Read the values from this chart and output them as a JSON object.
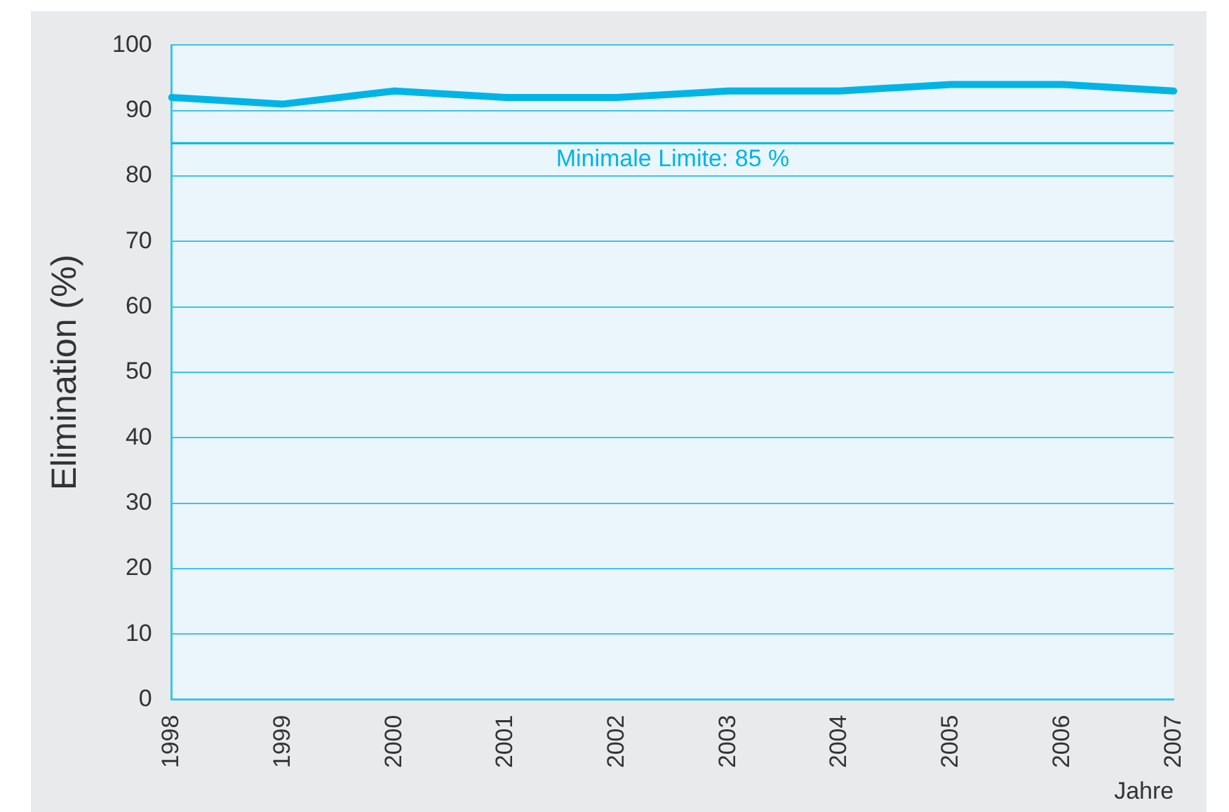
{
  "chart_data": {
    "type": "line",
    "ylabel": "Elimination (%)",
    "xlabel": "Jahre",
    "categories": [
      "1998",
      "1999",
      "2000",
      "2001",
      "2002",
      "2003",
      "2004",
      "2005",
      "2006",
      "2007"
    ],
    "series": [
      {
        "color": "#00b4e6",
        "values": [
          92,
          91,
          93,
          92,
          92,
          93,
          93,
          94,
          94,
          93
        ]
      }
    ],
    "ylim": [
      0,
      100
    ],
    "yticks": [
      0,
      10,
      20,
      30,
      40,
      50,
      60,
      70,
      80,
      90,
      100
    ],
    "grid": "y",
    "legend": false,
    "marker": "none",
    "line_style": "solid",
    "ref_lines": [
      {
        "axis": "y",
        "value": 85,
        "label": "Minimale Limite: 85 %",
        "color": "#00b4e6"
      }
    ]
  }
}
